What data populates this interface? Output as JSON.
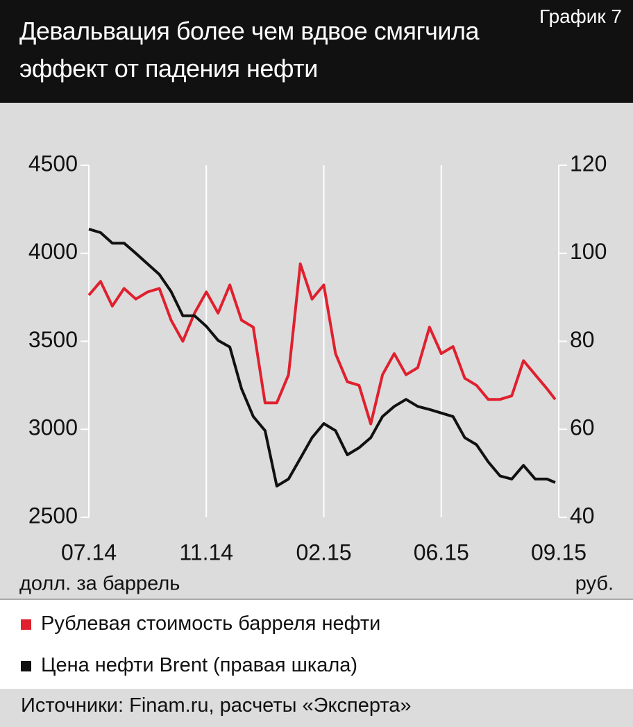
{
  "chart_data": {
    "type": "line",
    "title": "Девальвация более чем вдвое смягчила эффект от падения нефти",
    "label": "График 7",
    "y_unit_label": "долл. за баррель",
    "y2_unit_label": "руб.",
    "source": "Источники: Finam.ru, расчеты «Эксперта»",
    "x": [
      0,
      0.1,
      0.2,
      0.3,
      0.4,
      0.5,
      0.6,
      0.7,
      0.8,
      0.9,
      1.0,
      1.1,
      1.2,
      1.3,
      1.4,
      1.5,
      1.6,
      1.7,
      1.8,
      1.9,
      2.0,
      2.1,
      2.2,
      2.3,
      2.4,
      2.5,
      2.6,
      2.7,
      2.8,
      2.9,
      3.0,
      3.1,
      3.2,
      3.3,
      3.4,
      3.5,
      3.6,
      3.7,
      3.8,
      3.9,
      3.97
    ],
    "xlim": [
      0,
      4
    ],
    "xticks": [
      {
        "value": 0,
        "label": "07.14"
      },
      {
        "value": 1,
        "label": "11.14"
      },
      {
        "value": 2,
        "label": "02.15"
      },
      {
        "value": 3,
        "label": "06.15"
      },
      {
        "value": 4,
        "label": "09.15"
      }
    ],
    "ylim": [
      2500,
      4500
    ],
    "yticks": [
      2500,
      3000,
      3500,
      4000,
      4500
    ],
    "y2lim": [
      40,
      120
    ],
    "y2ticks": [
      40,
      60,
      80,
      100,
      120
    ],
    "grid": "x",
    "series": [
      {
        "name": "Рублевая стоимость барреля нефти",
        "color": "#e0202e",
        "values": [
          3762,
          3840,
          3700,
          3800,
          3740,
          3780,
          3800,
          3620,
          3500,
          3660,
          3780,
          3660,
          3820,
          3620,
          3580,
          3150,
          3150,
          3310,
          3940,
          3740,
          3820,
          3430,
          3270,
          3250,
          3030,
          3310,
          3430,
          3310,
          3350,
          3580,
          3430,
          3470,
          3290,
          3250,
          3170,
          3170,
          3190,
          3390,
          3310,
          3230,
          3170
        ]
      },
      {
        "name": "Цена нефти Brent (правая шкала)",
        "color": "#111111",
        "axis": "y2",
        "values": [
          105.5,
          104.7,
          102.3,
          102.3,
          100,
          97.6,
          95.2,
          91.3,
          85.8,
          85.8,
          83.4,
          80.2,
          78.7,
          69.2,
          62.9,
          59.7,
          47.1,
          48.7,
          53.4,
          58.1,
          61.3,
          59.7,
          54.2,
          55.8,
          58.1,
          62.9,
          65.2,
          66.8,
          65.2,
          64.5,
          63.7,
          62.9,
          58.1,
          56.5,
          52.6,
          49.4,
          48.7,
          51.8,
          48.7,
          48.7,
          47.9
        ]
      }
    ]
  }
}
